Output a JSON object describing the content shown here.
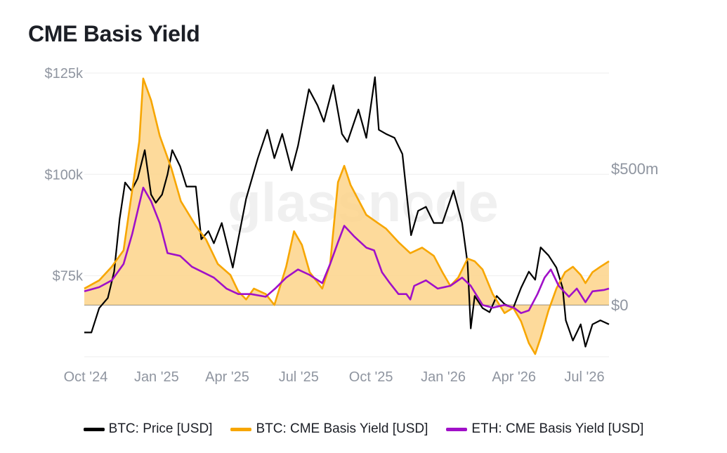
{
  "header": {
    "title": "CME Basis Yield"
  },
  "watermark": "glassnode",
  "colors": {
    "btc_price": "#000000",
    "btc_yield": "#f7a600",
    "btc_yield_fill": "#fdd38a",
    "eth_yield": "#a010c8",
    "grid": "#eeeeee",
    "axis_text": "#8f95a0"
  },
  "chart_data": {
    "type": "line",
    "title": "CME Basis Yield",
    "x_tick_labels": [
      "Oct '24",
      "Jan '25",
      "Apr '25",
      "Jul '25",
      "Oct '25",
      "Jan '26",
      "Apr '26",
      "Jul '26"
    ],
    "x_range": [
      "2024-10-01",
      "2026-07-31"
    ],
    "left_axis": {
      "tick_labels": [
        "$75k",
        "$100k",
        "$125k"
      ],
      "ticks": [
        75000,
        100000,
        125000
      ],
      "range": [
        55000,
        125000
      ]
    },
    "right_axis": {
      "tick_labels": [
        "$0",
        "$500m"
      ],
      "ticks": [
        0,
        500000000
      ],
      "range": [
        -190000000,
        850000000
      ]
    },
    "legend": {
      "placement": "bottom"
    },
    "grid": true,
    "series": [
      {
        "name": "BTC: Price [USD]",
        "axis": "left",
        "color": "#000000",
        "points": [
          [
            "2024-10-01",
            61000
          ],
          [
            "2024-10-10",
            61000
          ],
          [
            "2024-10-20",
            67000
          ],
          [
            "2024-10-31",
            69500
          ],
          [
            "2024-11-08",
            76000
          ],
          [
            "2024-11-15",
            89000
          ],
          [
            "2024-11-22",
            98000
          ],
          [
            "2024-11-30",
            96000
          ],
          [
            "2024-12-08",
            99000
          ],
          [
            "2024-12-17",
            106000
          ],
          [
            "2024-12-25",
            95000
          ],
          [
            "2024-12-31",
            93000
          ],
          [
            "2025-01-08",
            95000
          ],
          [
            "2025-01-15",
            100000
          ],
          [
            "2025-01-21",
            106000
          ],
          [
            "2025-01-31",
            102000
          ],
          [
            "2025-02-08",
            97000
          ],
          [
            "2025-02-20",
            97000
          ],
          [
            "2025-02-27",
            84000
          ],
          [
            "2025-03-08",
            86000
          ],
          [
            "2025-03-15",
            83000
          ],
          [
            "2025-03-25",
            88000
          ],
          [
            "2025-04-08",
            77000
          ],
          [
            "2025-04-15",
            84000
          ],
          [
            "2025-04-25",
            94000
          ],
          [
            "2025-05-10",
            104000
          ],
          [
            "2025-05-22",
            111000
          ],
          [
            "2025-05-31",
            104000
          ],
          [
            "2025-06-10",
            110000
          ],
          [
            "2025-06-22",
            101000
          ],
          [
            "2025-06-30",
            107000
          ],
          [
            "2025-07-14",
            121000
          ],
          [
            "2025-07-25",
            117000
          ],
          [
            "2025-08-02",
            113000
          ],
          [
            "2025-08-14",
            122000
          ],
          [
            "2025-08-25",
            110000
          ],
          [
            "2025-09-01",
            108000
          ],
          [
            "2025-09-15",
            116000
          ],
          [
            "2025-09-25",
            109000
          ],
          [
            "2025-10-06",
            124000
          ],
          [
            "2025-10-11",
            111000
          ],
          [
            "2025-10-20",
            110000
          ],
          [
            "2025-10-31",
            109000
          ],
          [
            "2025-11-10",
            105000
          ],
          [
            "2025-11-21",
            85000
          ],
          [
            "2025-11-30",
            91000
          ],
          [
            "2025-12-10",
            92000
          ],
          [
            "2025-12-20",
            88000
          ],
          [
            "2025-12-31",
            88000
          ],
          [
            "2026-01-14",
            96000
          ],
          [
            "2026-01-25",
            88000
          ],
          [
            "2026-02-01",
            78000
          ],
          [
            "2026-02-05",
            62000
          ],
          [
            "2026-02-10",
            70000
          ],
          [
            "2026-02-20",
            67000
          ],
          [
            "2026-03-01",
            66000
          ],
          [
            "2026-03-10",
            70000
          ],
          [
            "2026-03-20",
            68000
          ],
          [
            "2026-03-31",
            67000
          ],
          [
            "2026-04-10",
            72000
          ],
          [
            "2026-04-20",
            76000
          ],
          [
            "2026-04-28",
            74000
          ],
          [
            "2026-05-05",
            82000
          ],
          [
            "2026-05-15",
            80000
          ],
          [
            "2026-05-25",
            77000
          ],
          [
            "2026-06-02",
            72000
          ],
          [
            "2026-06-06",
            64000
          ],
          [
            "2026-06-15",
            59000
          ],
          [
            "2026-06-25",
            63000
          ],
          [
            "2026-07-01",
            57500
          ],
          [
            "2026-07-10",
            63000
          ],
          [
            "2026-07-20",
            64000
          ],
          [
            "2026-07-31",
            63000
          ]
        ]
      },
      {
        "name": "BTC: CME Basis Yield [USD]",
        "axis": "right",
        "color": "#f7a600",
        "points": [
          [
            "2024-10-01",
            60000000
          ],
          [
            "2024-10-20",
            90000000
          ],
          [
            "2024-11-05",
            140000000
          ],
          [
            "2024-11-20",
            200000000
          ],
          [
            "2024-12-01",
            420000000
          ],
          [
            "2024-12-10",
            600000000
          ],
          [
            "2024-12-15",
            830000000
          ],
          [
            "2024-12-25",
            750000000
          ],
          [
            "2025-01-05",
            620000000
          ],
          [
            "2025-01-20",
            500000000
          ],
          [
            "2025-02-01",
            380000000
          ],
          [
            "2025-02-20",
            290000000
          ],
          [
            "2025-03-05",
            240000000
          ],
          [
            "2025-03-20",
            150000000
          ],
          [
            "2025-04-05",
            110000000
          ],
          [
            "2025-04-15",
            50000000
          ],
          [
            "2025-04-25",
            20000000
          ],
          [
            "2025-05-05",
            60000000
          ],
          [
            "2025-05-20",
            40000000
          ],
          [
            "2025-05-31",
            0
          ],
          [
            "2025-06-15",
            140000000
          ],
          [
            "2025-06-25",
            270000000
          ],
          [
            "2025-07-05",
            220000000
          ],
          [
            "2025-07-15",
            120000000
          ],
          [
            "2025-07-31",
            60000000
          ],
          [
            "2025-08-10",
            150000000
          ],
          [
            "2025-08-20",
            450000000
          ],
          [
            "2025-08-28",
            510000000
          ],
          [
            "2025-09-05",
            440000000
          ],
          [
            "2025-09-25",
            330000000
          ],
          [
            "2025-10-10",
            300000000
          ],
          [
            "2025-10-20",
            280000000
          ],
          [
            "2025-11-05",
            230000000
          ],
          [
            "2025-11-20",
            190000000
          ],
          [
            "2025-12-05",
            210000000
          ],
          [
            "2025-12-20",
            180000000
          ],
          [
            "2025-12-31",
            120000000
          ],
          [
            "2026-01-10",
            70000000
          ],
          [
            "2026-01-20",
            100000000
          ],
          [
            "2026-02-01",
            170000000
          ],
          [
            "2026-02-10",
            160000000
          ],
          [
            "2026-02-20",
            130000000
          ],
          [
            "2026-03-05",
            40000000
          ],
          [
            "2026-03-20",
            -30000000
          ],
          [
            "2026-03-31",
            -10000000
          ],
          [
            "2026-04-10",
            -60000000
          ],
          [
            "2026-04-20",
            -140000000
          ],
          [
            "2026-04-28",
            -180000000
          ],
          [
            "2026-05-05",
            -120000000
          ],
          [
            "2026-05-15",
            -20000000
          ],
          [
            "2026-05-25",
            60000000
          ],
          [
            "2026-06-05",
            120000000
          ],
          [
            "2026-06-15",
            140000000
          ],
          [
            "2026-06-25",
            110000000
          ],
          [
            "2026-07-01",
            80000000
          ],
          [
            "2026-07-10",
            120000000
          ],
          [
            "2026-07-20",
            140000000
          ],
          [
            "2026-07-31",
            160000000
          ]
        ]
      },
      {
        "name": "ETH: CME Basis Yield [USD]",
        "axis": "right",
        "color": "#a010c8",
        "points": [
          [
            "2024-10-01",
            50000000
          ],
          [
            "2024-10-20",
            65000000
          ],
          [
            "2024-11-05",
            90000000
          ],
          [
            "2024-11-20",
            150000000
          ],
          [
            "2024-12-01",
            260000000
          ],
          [
            "2024-12-10",
            370000000
          ],
          [
            "2024-12-15",
            430000000
          ],
          [
            "2024-12-25",
            380000000
          ],
          [
            "2025-01-05",
            300000000
          ],
          [
            "2025-01-15",
            190000000
          ],
          [
            "2025-01-31",
            180000000
          ],
          [
            "2025-02-15",
            140000000
          ],
          [
            "2025-03-01",
            120000000
          ],
          [
            "2025-03-15",
            100000000
          ],
          [
            "2025-03-31",
            60000000
          ],
          [
            "2025-04-15",
            40000000
          ],
          [
            "2025-05-01",
            40000000
          ],
          [
            "2025-05-20",
            30000000
          ],
          [
            "2025-06-01",
            60000000
          ],
          [
            "2025-06-15",
            100000000
          ],
          [
            "2025-06-30",
            130000000
          ],
          [
            "2025-07-15",
            110000000
          ],
          [
            "2025-07-31",
            80000000
          ],
          [
            "2025-08-10",
            150000000
          ],
          [
            "2025-08-20",
            230000000
          ],
          [
            "2025-08-28",
            290000000
          ],
          [
            "2025-09-10",
            250000000
          ],
          [
            "2025-09-25",
            210000000
          ],
          [
            "2025-10-05",
            200000000
          ],
          [
            "2025-10-15",
            120000000
          ],
          [
            "2025-10-25",
            80000000
          ],
          [
            "2025-11-05",
            40000000
          ],
          [
            "2025-11-15",
            40000000
          ],
          [
            "2025-11-20",
            20000000
          ],
          [
            "2025-11-25",
            70000000
          ],
          [
            "2025-12-10",
            90000000
          ],
          [
            "2025-12-25",
            60000000
          ],
          [
            "2026-01-10",
            70000000
          ],
          [
            "2026-01-25",
            100000000
          ],
          [
            "2026-02-05",
            70000000
          ],
          [
            "2026-02-20",
            0
          ],
          [
            "2026-03-05",
            -10000000
          ],
          [
            "2026-03-20",
            0
          ],
          [
            "2026-04-01",
            -10000000
          ],
          [
            "2026-04-10",
            -30000000
          ],
          [
            "2026-04-20",
            -20000000
          ],
          [
            "2026-05-01",
            40000000
          ],
          [
            "2026-05-10",
            100000000
          ],
          [
            "2026-05-18",
            130000000
          ],
          [
            "2026-05-28",
            70000000
          ],
          [
            "2026-06-10",
            30000000
          ],
          [
            "2026-06-20",
            60000000
          ],
          [
            "2026-07-01",
            10000000
          ],
          [
            "2026-07-10",
            50000000
          ],
          [
            "2026-07-25",
            55000000
          ],
          [
            "2026-07-31",
            60000000
          ]
        ]
      }
    ]
  }
}
